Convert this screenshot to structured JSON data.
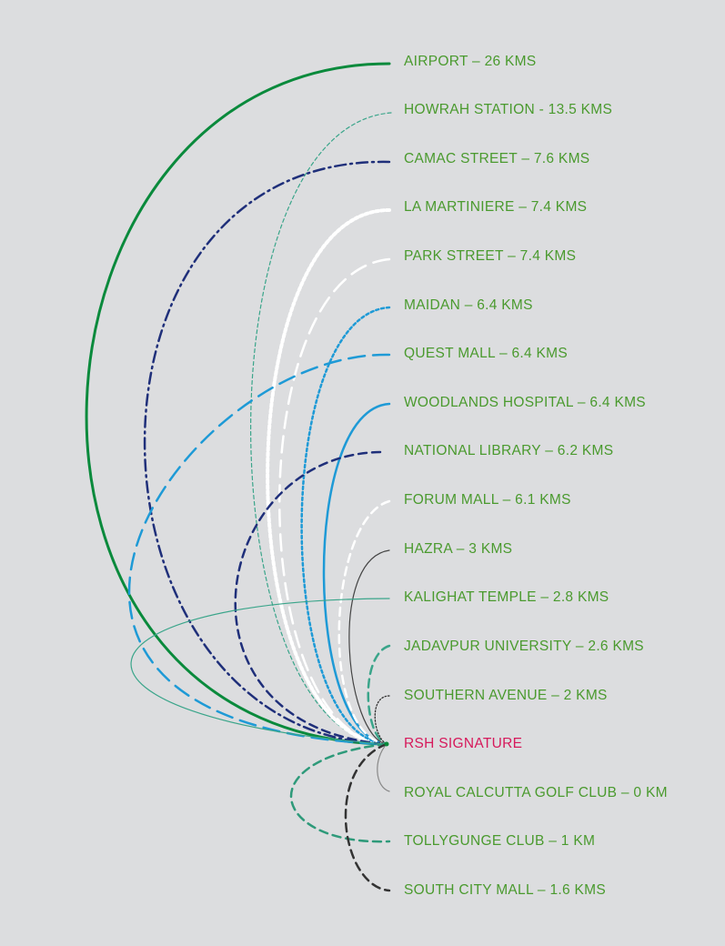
{
  "colors": {
    "background": "#dcdddf",
    "label": "#4a9a2e",
    "origin_label": "#d6195b"
  },
  "origin": {
    "label": "RSH SIGNATURE"
  },
  "destinations": [
    {
      "id": "airport",
      "label": "AIRPORT – 26 KMS",
      "stroke": "#0a8a3c",
      "style": "solid-thick"
    },
    {
      "id": "howrah-station",
      "label": "HOWRAH STATION - 13.5 KMS",
      "stroke": "#3aa58a",
      "style": "fine-dash"
    },
    {
      "id": "camac-street",
      "label": "CAMAC STREET – 7.6 KMS",
      "stroke": "#1f2f7a",
      "style": "dash-dot"
    },
    {
      "id": "la-martiniere",
      "label": "LA MARTINIERE – 7.4 KMS",
      "stroke": "#ffffff",
      "style": "dotted-thick"
    },
    {
      "id": "park-street",
      "label": "PARK STREET – 7.4 KMS",
      "stroke": "#ffffff",
      "style": "long-dash"
    },
    {
      "id": "maidan",
      "label": "MAIDAN – 6.4 KMS",
      "stroke": "#1e9ad6",
      "style": "dotted"
    },
    {
      "id": "quest-mall",
      "label": "QUEST MALL – 6.4 KMS",
      "stroke": "#1e9ad6",
      "style": "long-dash"
    },
    {
      "id": "woodlands-hospital",
      "label": "WOODLANDS HOSPITAL – 6.4 KMS",
      "stroke": "#1e9ad6",
      "style": "solid"
    },
    {
      "id": "national-library",
      "label": "NATIONAL LIBRARY – 6.2 KMS",
      "stroke": "#1f2f7a",
      "style": "dash"
    },
    {
      "id": "forum-mall",
      "label": "FORUM MALL – 6.1 KMS",
      "stroke": "#ffffff",
      "style": "dash"
    },
    {
      "id": "hazra",
      "label": "HAZRA – 3 KMS",
      "stroke": "#444444",
      "style": "solid-thin"
    },
    {
      "id": "kalighat-temple",
      "label": "KALIGHAT TEMPLE – 2.8 KMS",
      "stroke": "#3aa58a",
      "style": "solid-thin"
    },
    {
      "id": "jadavpur-university",
      "label": "JADAVPUR UNIVERSITY – 2.6 KMS",
      "stroke": "#3aa58a",
      "style": "dash"
    },
    {
      "id": "southern-avenue",
      "label": "SOUTHERN AVENUE – 2 KMS",
      "stroke": "#333333",
      "style": "fine-dot"
    },
    {
      "id": "royal-calcutta-golf-club",
      "label": "ROYAL CALCUTTA GOLF CLUB – 0 KM",
      "stroke": "#888888",
      "style": "solid-thin"
    },
    {
      "id": "tollygunge-club",
      "label": "TOLLYGUNGE CLUB – 1 KM",
      "stroke": "#2e9a7a",
      "style": "dash"
    },
    {
      "id": "south-city-mall",
      "label": "SOUTH CITY MALL – 1.6 KMS",
      "stroke": "#333333",
      "style": "dash"
    }
  ]
}
